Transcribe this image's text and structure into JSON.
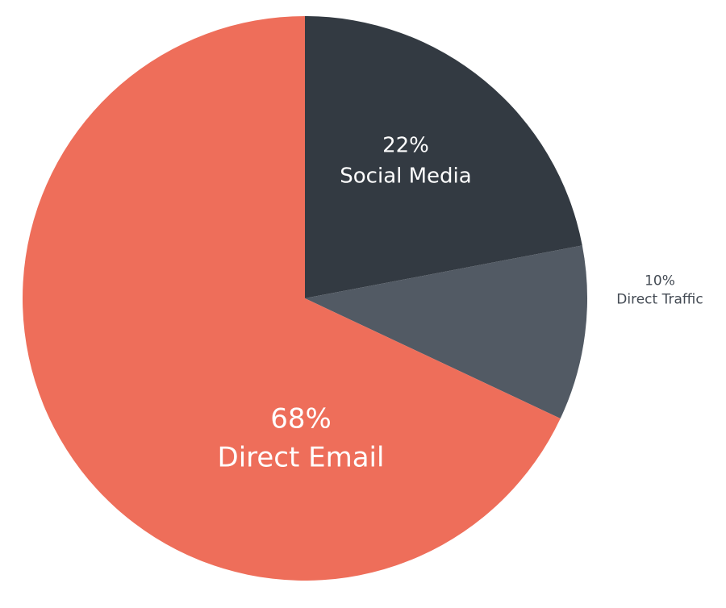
{
  "chart_data": {
    "type": "pie",
    "categories": [
      "Social Media",
      "Direct Traffic",
      "Direct Email"
    ],
    "values": [
      22,
      10,
      68
    ],
    "value_labels": [
      "22%",
      "10%",
      "68%"
    ],
    "colors": [
      "#333a42",
      "#525a64",
      "#ee6e5a"
    ]
  }
}
